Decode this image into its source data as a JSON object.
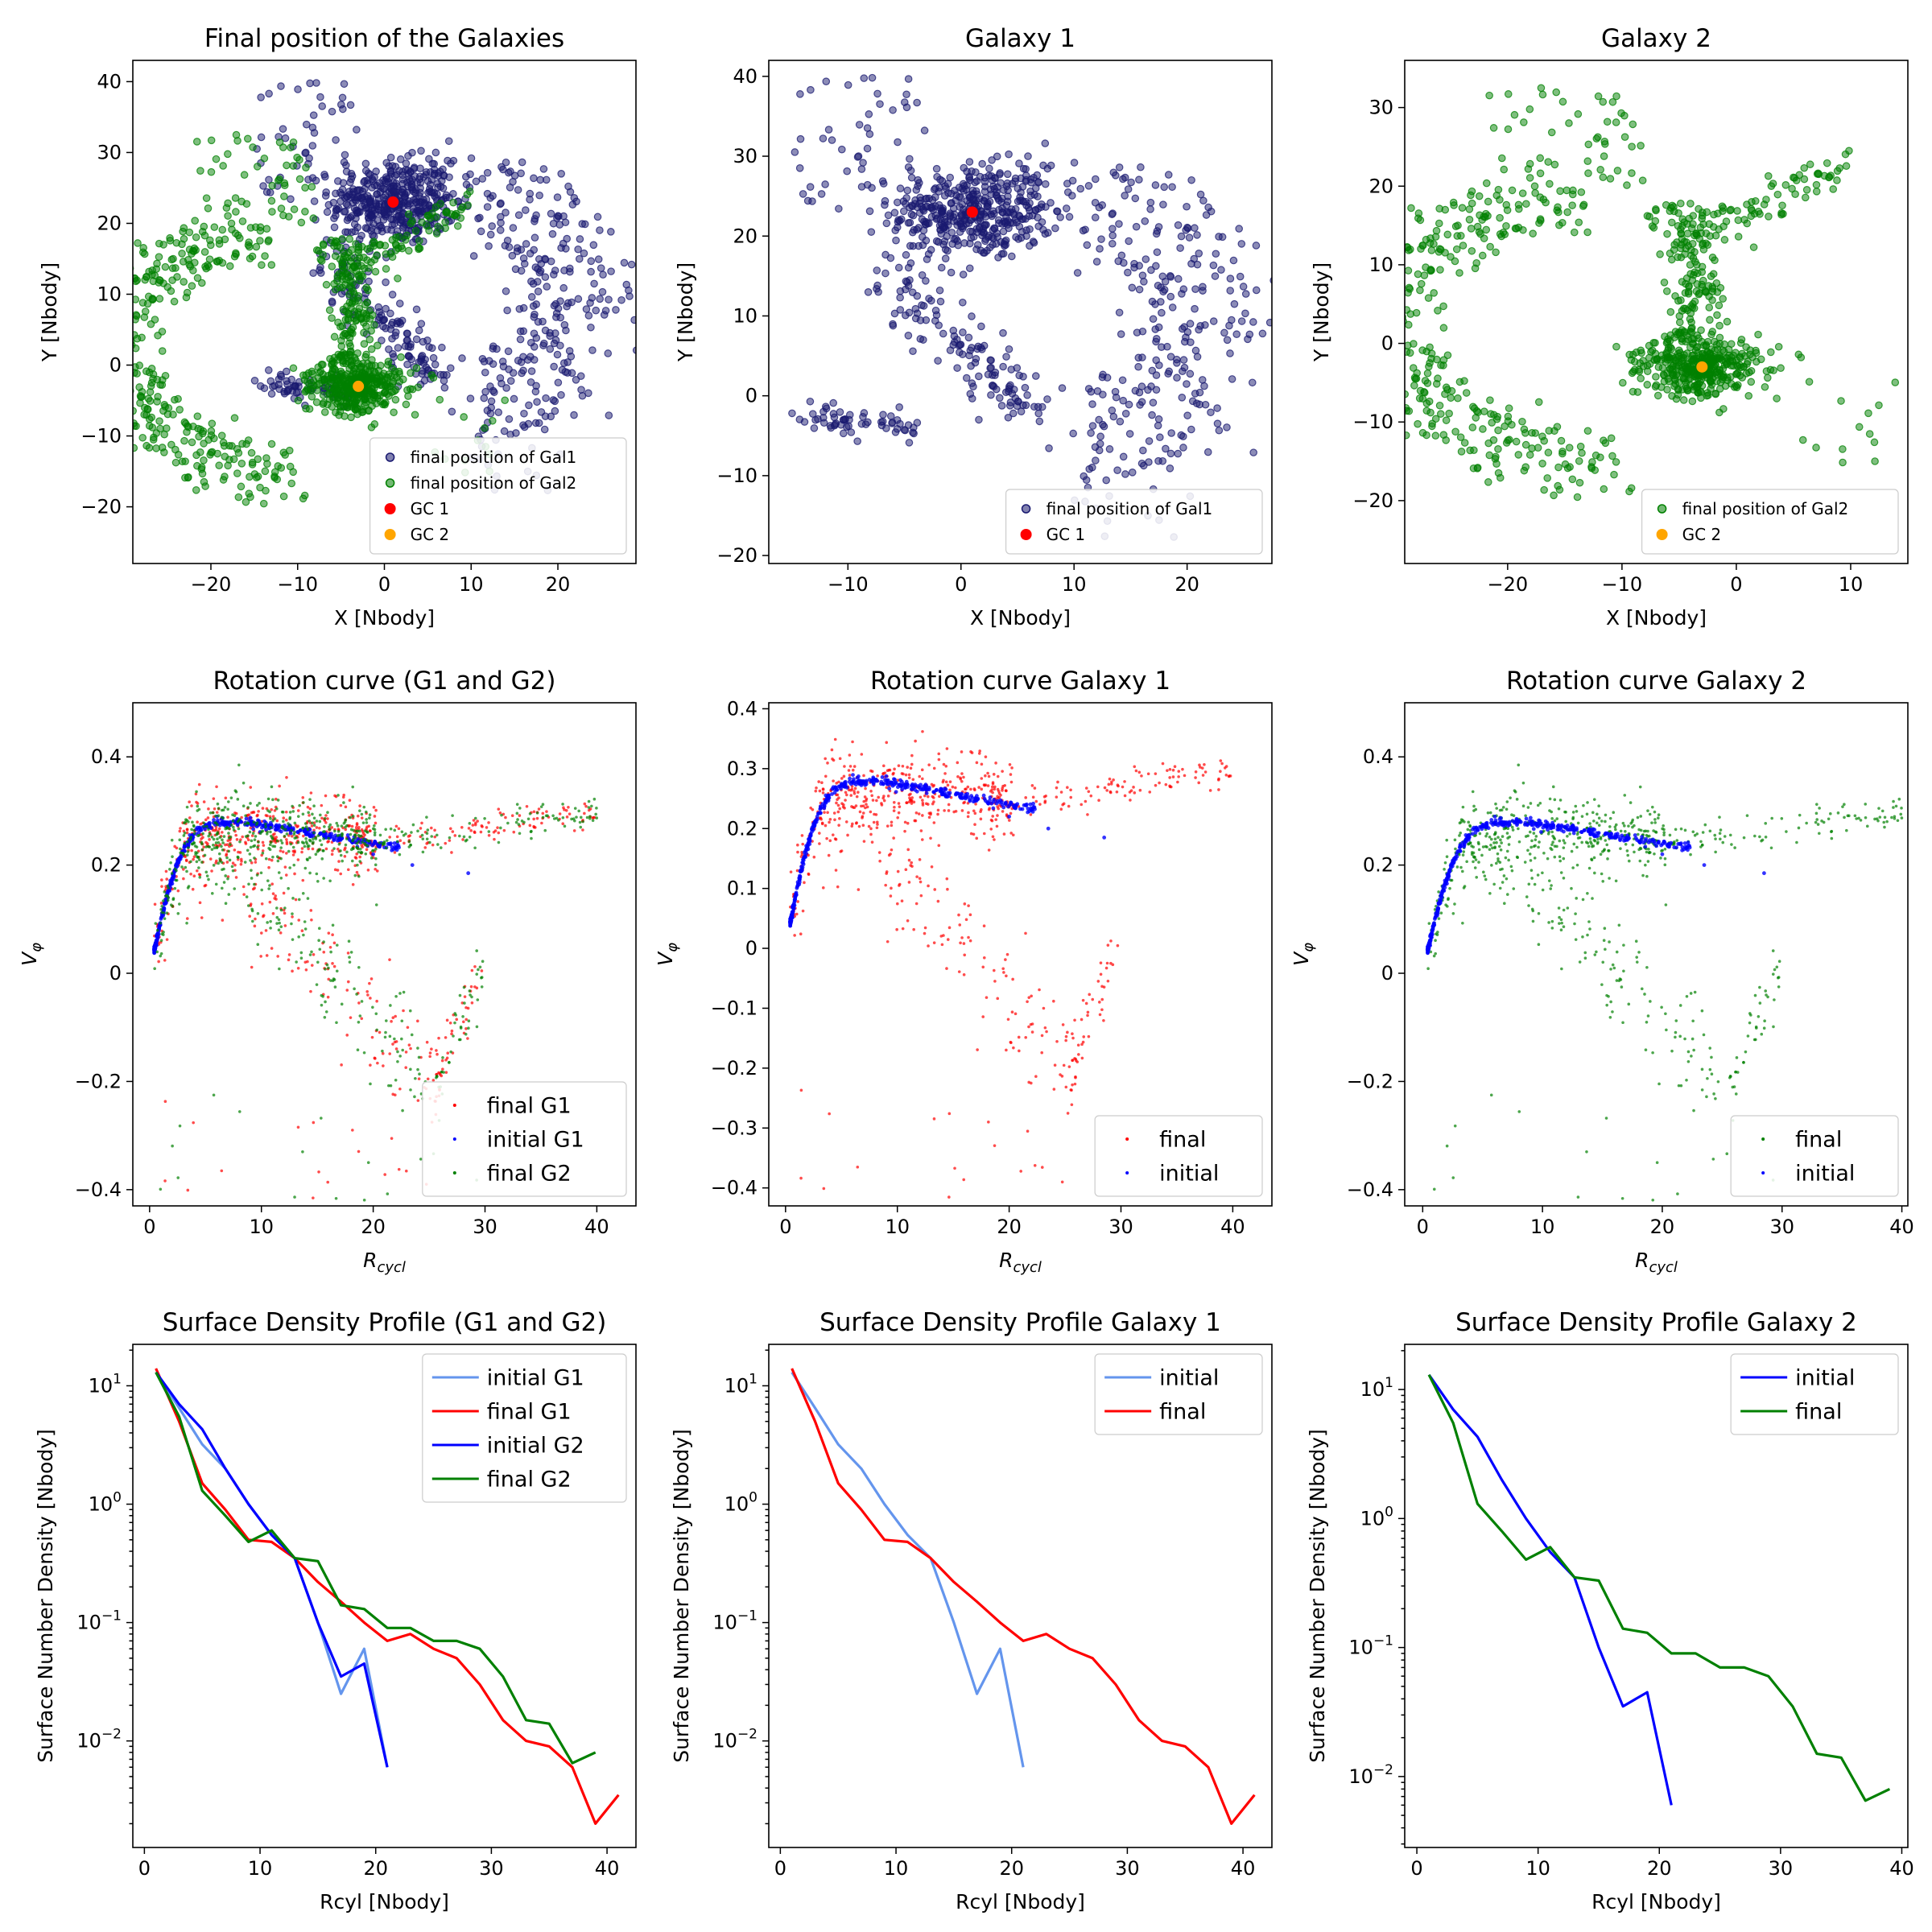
{
  "chart_data": [
    {
      "type": "scatter",
      "title": "Final position of the Galaxies",
      "xlabel": "X [Nbody]",
      "ylabel": "Y [Nbody]",
      "xlim": [
        -29,
        29
      ],
      "ylim": [
        -28,
        43
      ],
      "xticks": [
        -20,
        -10,
        0,
        10,
        20
      ],
      "yticks": [
        -20,
        -10,
        0,
        10,
        20,
        30,
        40
      ],
      "legend_placement": "lower-right",
      "series": [
        {
          "name": "final position of Gal1",
          "color": "#191970",
          "kind": "galaxy",
          "center": [
            1,
            23
          ]
        },
        {
          "name": "final position of Gal2",
          "color": "#008000",
          "kind": "galaxy",
          "center": [
            -3,
            -3
          ]
        },
        {
          "name": "GC 1",
          "color": "#ff0000",
          "kind": "point",
          "x": [
            1
          ],
          "y": [
            23
          ]
        },
        {
          "name": "GC 2",
          "color": "#ffa500",
          "kind": "point",
          "x": [
            -3
          ],
          "y": [
            -3
          ]
        }
      ]
    },
    {
      "type": "scatter",
      "title": "Galaxy 1",
      "xlabel": "X [Nbody]",
      "ylabel": "Y [Nbody]",
      "xlim": [
        -17,
        27.5
      ],
      "ylim": [
        -21,
        42
      ],
      "xticks": [
        -10,
        0,
        10,
        20
      ],
      "yticks": [
        -20,
        -10,
        0,
        10,
        20,
        30,
        40
      ],
      "legend_placement": "lower-right",
      "series": [
        {
          "name": "final position of Gal1",
          "color": "#191970",
          "kind": "galaxy",
          "center": [
            1,
            23
          ]
        },
        {
          "name": "GC 1",
          "color": "#ff0000",
          "kind": "point",
          "x": [
            1
          ],
          "y": [
            23
          ]
        }
      ]
    },
    {
      "type": "scatter",
      "title": "Galaxy 2",
      "xlabel": "X [Nbody]",
      "ylabel": "Y [Nbody]",
      "xlim": [
        -29,
        15
      ],
      "ylim": [
        -28,
        36
      ],
      "xticks": [
        -20,
        -10,
        0,
        10
      ],
      "yticks": [
        -20,
        -10,
        0,
        10,
        20,
        30
      ],
      "legend_placement": "lower-right",
      "series": [
        {
          "name": "final position of Gal2",
          "color": "#008000",
          "kind": "galaxy",
          "center": [
            -3,
            -3
          ]
        },
        {
          "name": "GC 2",
          "color": "#ffa500",
          "kind": "point",
          "x": [
            -3
          ],
          "y": [
            -3
          ]
        }
      ]
    },
    {
      "type": "scatter",
      "title": "Rotation curve (G1 and G2)",
      "xlabel": "R_cycl",
      "ylabel": "V_φ",
      "xlim": [
        -1.5,
        43.5
      ],
      "ylim": [
        -0.43,
        0.5
      ],
      "xticks": [
        0,
        10,
        20,
        30,
        40
      ],
      "yticks": [
        -0.4,
        -0.2,
        0.0,
        0.2,
        0.4
      ],
      "legend_placement": "lower-right",
      "series": [
        {
          "name": "final G1",
          "color": "#ff0000",
          "kind": "rotfinal"
        },
        {
          "name": "initial G1",
          "color": "#0000ff",
          "kind": "rotinit"
        },
        {
          "name": "final G2",
          "color": "#008000",
          "kind": "rotfinal"
        }
      ]
    },
    {
      "type": "scatter",
      "title": "Rotation curve Galaxy 1",
      "xlabel": "R_cycl",
      "ylabel": "V_φ",
      "xlim": [
        -1.5,
        43.5
      ],
      "ylim": [
        -0.43,
        0.41
      ],
      "xticks": [
        0,
        10,
        20,
        30,
        40
      ],
      "yticks": [
        -0.4,
        -0.3,
        -0.2,
        -0.1,
        0.0,
        0.1,
        0.2,
        0.3,
        0.4
      ],
      "legend_placement": "lower-right",
      "series": [
        {
          "name": "final",
          "color": "#ff0000",
          "kind": "rotfinal"
        },
        {
          "name": "initial",
          "color": "#0000ff",
          "kind": "rotinit"
        }
      ]
    },
    {
      "type": "scatter",
      "title": "Rotation curve Galaxy 2",
      "xlabel": "R_cycl",
      "ylabel": "V_φ",
      "xlim": [
        -1.5,
        40.5
      ],
      "ylim": [
        -0.43,
        0.5
      ],
      "xticks": [
        0,
        10,
        20,
        30,
        40
      ],
      "yticks": [
        -0.4,
        -0.2,
        0.0,
        0.2,
        0.4
      ],
      "legend_placement": "lower-right",
      "series": [
        {
          "name": "final",
          "color": "#008000",
          "kind": "rotfinal"
        },
        {
          "name": "initial",
          "color": "#0000ff",
          "kind": "rotinit"
        }
      ]
    },
    {
      "type": "line",
      "title": "Surface Density Profile (G1 and G2)",
      "xlabel": "Rcyl [Nbody]",
      "ylabel": "Surface Number Density [Nbody]",
      "xscale": "linear",
      "yscale": "log",
      "xlim": [
        -1,
        42.5
      ],
      "ylim_log10": [
        -2.9,
        1.35
      ],
      "xticks": [
        0,
        10,
        20,
        30,
        40
      ],
      "yticks_log10": [
        -2,
        -1,
        0,
        1
      ],
      "legend_placement": "upper-right",
      "series": [
        {
          "name": "initial G1",
          "color": "#6495ed",
          "x": [
            1,
            3,
            5,
            7,
            9,
            11,
            13,
            15,
            17,
            19,
            21
          ],
          "y": [
            13,
            6.5,
            3.2,
            2.0,
            1.0,
            0.55,
            0.35,
            0.1,
            0.025,
            0.06,
            0.006
          ]
        },
        {
          "name": "final G1",
          "color": "#ff0000",
          "x": [
            1,
            3,
            5,
            7,
            9,
            11,
            13,
            15,
            17,
            19,
            21,
            23,
            25,
            27,
            29,
            31,
            33,
            35,
            37,
            39,
            41
          ],
          "y": [
            14,
            5.0,
            1.5,
            0.9,
            0.5,
            0.48,
            0.35,
            0.22,
            0.15,
            0.1,
            0.07,
            0.08,
            0.06,
            0.05,
            0.03,
            0.015,
            0.01,
            0.009,
            0.006,
            0.002,
            0.0035
          ]
        },
        {
          "name": "initial G2",
          "color": "#0000ff",
          "x": [
            1,
            3,
            5,
            7,
            9,
            11,
            13,
            15,
            17,
            19,
            21
          ],
          "y": [
            13,
            7.0,
            4.3,
            2.0,
            1.0,
            0.55,
            0.35,
            0.1,
            0.035,
            0.045,
            0.006
          ]
        },
        {
          "name": "final G2",
          "color": "#008000",
          "x": [
            1,
            3,
            5,
            7,
            9,
            11,
            13,
            15,
            17,
            19,
            21,
            23,
            25,
            27,
            29,
            31,
            33,
            35,
            37,
            39
          ],
          "y": [
            13,
            5.5,
            1.3,
            0.8,
            0.48,
            0.6,
            0.35,
            0.33,
            0.14,
            0.13,
            0.09,
            0.09,
            0.07,
            0.07,
            0.06,
            0.035,
            0.015,
            0.014,
            0.0065,
            0.008
          ]
        }
      ]
    },
    {
      "type": "line",
      "title": "Surface Density Profile Galaxy 1",
      "xlabel": "Rcyl [Nbody]",
      "ylabel": "Surface Number Density [Nbody]",
      "xscale": "linear",
      "yscale": "log",
      "xlim": [
        -1,
        42.5
      ],
      "ylim_log10": [
        -2.9,
        1.35
      ],
      "xticks": [
        0,
        10,
        20,
        30,
        40
      ],
      "yticks_log10": [
        -2,
        -1,
        0,
        1
      ],
      "legend_placement": "upper-right",
      "series": [
        {
          "name": "initial",
          "color": "#6495ed",
          "x": [
            1,
            3,
            5,
            7,
            9,
            11,
            13,
            15,
            17,
            19,
            21
          ],
          "y": [
            13,
            6.5,
            3.2,
            2.0,
            1.0,
            0.55,
            0.35,
            0.1,
            0.025,
            0.06,
            0.006
          ]
        },
        {
          "name": "final",
          "color": "#ff0000",
          "x": [
            1,
            3,
            5,
            7,
            9,
            11,
            13,
            15,
            17,
            19,
            21,
            23,
            25,
            27,
            29,
            31,
            33,
            35,
            37,
            39,
            41
          ],
          "y": [
            14,
            5.0,
            1.5,
            0.9,
            0.5,
            0.48,
            0.35,
            0.22,
            0.15,
            0.1,
            0.07,
            0.08,
            0.06,
            0.05,
            0.03,
            0.015,
            0.01,
            0.009,
            0.006,
            0.002,
            0.0035
          ]
        }
      ]
    },
    {
      "type": "line",
      "title": "Surface Density Profile Galaxy 2",
      "xlabel": "Rcyl [Nbody]",
      "ylabel": "Surface Number Density [Nbody]",
      "xscale": "linear",
      "yscale": "log",
      "xlim": [
        -1,
        40.5
      ],
      "ylim_log10": [
        -2.55,
        1.35
      ],
      "xticks": [
        0,
        10,
        20,
        30,
        40
      ],
      "yticks_log10": [
        -2,
        -1,
        0,
        1
      ],
      "legend_placement": "upper-right",
      "series": [
        {
          "name": "initial",
          "color": "#0000ff",
          "x": [
            1,
            3,
            5,
            7,
            9,
            11,
            13,
            15,
            17,
            19,
            21
          ],
          "y": [
            13,
            7.0,
            4.3,
            2.0,
            1.0,
            0.55,
            0.35,
            0.1,
            0.035,
            0.045,
            0.006
          ]
        },
        {
          "name": "final",
          "color": "#008000",
          "x": [
            1,
            3,
            5,
            7,
            9,
            11,
            13,
            15,
            17,
            19,
            21,
            23,
            25,
            27,
            29,
            31,
            33,
            35,
            37,
            39
          ],
          "y": [
            13,
            5.5,
            1.3,
            0.8,
            0.48,
            0.6,
            0.35,
            0.33,
            0.14,
            0.13,
            0.09,
            0.09,
            0.07,
            0.07,
            0.06,
            0.035,
            0.015,
            0.014,
            0.0065,
            0.008
          ]
        }
      ]
    }
  ]
}
